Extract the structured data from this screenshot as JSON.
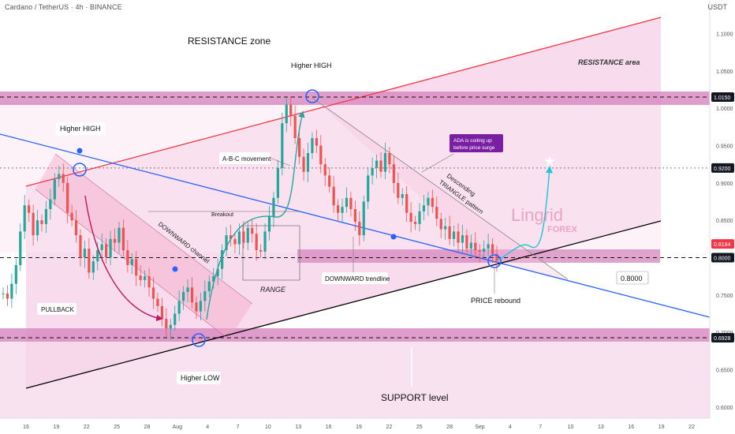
{
  "header": {
    "symbol": "Cardano / TetherUS · 4h · BINANCE",
    "currency": "USDT"
  },
  "chart_data": {
    "type": "candlestick",
    "timeframe": "4h",
    "y_axis": {
      "ylim": [
        0.58,
        1.13
      ],
      "ticks": [
        {
          "value": 1.1,
          "label": "1.1000"
        },
        {
          "value": 1.05,
          "label": "1.0500"
        },
        {
          "value": 1.0,
          "label": "1.0000"
        },
        {
          "value": 0.95,
          "label": "0.9500"
        },
        {
          "value": 0.9,
          "label": "0.9000"
        },
        {
          "value": 0.85,
          "label": "0.8500"
        },
        {
          "value": 0.75,
          "label": "0.7500"
        },
        {
          "value": 0.7,
          "label": "0.7000"
        },
        {
          "value": 0.65,
          "label": "0.6500"
        },
        {
          "value": 0.6,
          "label": "0.6000"
        }
      ]
    },
    "x_axis": {
      "tick_labels": [
        "16",
        "19",
        "22",
        "25",
        "28",
        "Aug",
        "4",
        "7",
        "10",
        "13",
        "16",
        "19",
        "22",
        "25",
        "28",
        "Sep",
        "4",
        "7",
        "10",
        "13",
        "16",
        "19",
        "22"
      ]
    },
    "price_tags": [
      {
        "value": 1.015,
        "label": "1.0150",
        "style": "dark"
      },
      {
        "value": 0.92,
        "label": "0.9200",
        "style": "dark"
      },
      {
        "value": 0.8184,
        "label": "0.8184",
        "style": "red"
      },
      {
        "value": 0.8,
        "label": "0.8000",
        "style": "dark"
      },
      {
        "value": 0.6928,
        "label": "0.6928",
        "style": "dark"
      }
    ],
    "zones": [
      {
        "name": "RESISTANCE area",
        "from": 1.006,
        "to": 1.024
      },
      {
        "name": "0.8000",
        "from": 0.79,
        "to": 0.809
      },
      {
        "name": "SUPPORT level",
        "from": 0.683,
        "to": 0.701
      }
    ],
    "candles_path": [
      0.752,
      0.745,
      0.765,
      0.79,
      0.835,
      0.87,
      0.86,
      0.83,
      0.85,
      0.845,
      0.865,
      0.878,
      0.905,
      0.912,
      0.9,
      0.86,
      0.85,
      0.83,
      0.8,
      0.812,
      0.78,
      0.795,
      0.81,
      0.818,
      0.8,
      0.825,
      0.82,
      0.84,
      0.81,
      0.79,
      0.798,
      0.776,
      0.77,
      0.775,
      0.76,
      0.745,
      0.735,
      0.718,
      0.705,
      0.71,
      0.725,
      0.742,
      0.754,
      0.76,
      0.74,
      0.728,
      0.742,
      0.755,
      0.768,
      0.775,
      0.785,
      0.81,
      0.83,
      0.825,
      0.818,
      0.835,
      0.82,
      0.84,
      0.832,
      0.81,
      0.808,
      0.835,
      0.855,
      0.88,
      0.92,
      0.98,
      1.005,
      0.99,
      0.96,
      0.935,
      0.915,
      0.94,
      0.96,
      0.95,
      0.925,
      0.91,
      0.895,
      0.87,
      0.86,
      0.868,
      0.88,
      0.865,
      0.848,
      0.83,
      0.875,
      0.91,
      0.92,
      0.93,
      0.915,
      0.94,
      0.925,
      0.9,
      0.88,
      0.885,
      0.86,
      0.848,
      0.845,
      0.862,
      0.87,
      0.88,
      0.868,
      0.852,
      0.838,
      0.842,
      0.825,
      0.835,
      0.82,
      0.83,
      0.812,
      0.82,
      0.81,
      0.808,
      0.812,
      0.818,
      0.805,
      0.795
    ],
    "annotations": [
      "RESISTANCE zone",
      "Higher HIGH",
      "RESISTANCE area",
      "Higher HIGH",
      "A-B-C movement",
      "ADA is coiling up before price surge",
      "Descending TRIANGLE pattern",
      "Breakout",
      "DOWNWARD channel",
      "RANGE",
      "DOWNWARD trendline",
      "PULLBACK",
      "PRICE rebound",
      "0.8000",
      "Higher LOW",
      "SUPPORT level"
    ],
    "watermark": {
      "line1": "Lingrid",
      "line2": "FOREX"
    },
    "grid": false,
    "colors": {
      "up": "#26a69a",
      "down": "#ef5350",
      "resistance_line": "#f23645",
      "channel_line": "#2962ff",
      "support_line": "#000000",
      "zone_fill": "#d88cc2",
      "pink_bg": "#f7d6ea"
    }
  },
  "labels": {
    "resistance_zone": "RESISTANCE zone",
    "higher_high_left": "Higher HIGH",
    "higher_high_top": "Higher HIGH",
    "resistance_area": "RESISTANCE area",
    "abc": "A-B-C movement",
    "coil_line1": "ADA is coiling up",
    "coil_line2": "before price surge",
    "triangle_line1": "Descending",
    "triangle_line2": "TRIANGLE pattern",
    "breakout": "Breakout",
    "downward_channel": "DOWNWARD channel",
    "range": "RANGE",
    "downward_trendline": "DOWNWARD trendline",
    "pullback": "PULLBACK",
    "price_rebound": "PRICE rebound",
    "level_box": "0.8000",
    "higher_low": "Higher LOW",
    "support_level": "SUPPORT level"
  }
}
